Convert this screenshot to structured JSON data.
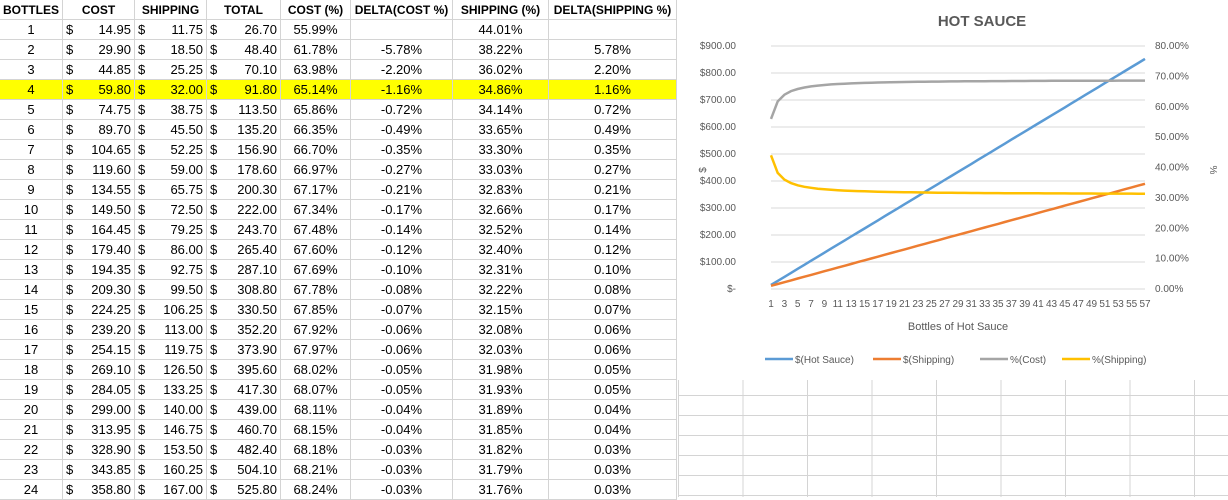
{
  "sheet": {
    "headers": [
      "BOTTLES",
      "COST",
      "SHIPPING",
      "TOTAL",
      "COST (%)",
      "DELTA(COST %)",
      "SHIPPING (%)",
      "DELTA(SHIPPING %)"
    ],
    "currency_symbol": "$",
    "highlight_row": 4,
    "highlight_color": "#ffff00",
    "rows": [
      {
        "bottles": "1",
        "cost": "14.95",
        "shipping": "11.75",
        "total": "26.70",
        "cost_pct": "55.99%",
        "delta_cost": "",
        "ship_pct": "44.01%",
        "delta_ship": ""
      },
      {
        "bottles": "2",
        "cost": "29.90",
        "shipping": "18.50",
        "total": "48.40",
        "cost_pct": "61.78%",
        "delta_cost": "-5.78%",
        "ship_pct": "38.22%",
        "delta_ship": "5.78%"
      },
      {
        "bottles": "3",
        "cost": "44.85",
        "shipping": "25.25",
        "total": "70.10",
        "cost_pct": "63.98%",
        "delta_cost": "-2.20%",
        "ship_pct": "36.02%",
        "delta_ship": "2.20%"
      },
      {
        "bottles": "4",
        "cost": "59.80",
        "shipping": "32.00",
        "total": "91.80",
        "cost_pct": "65.14%",
        "delta_cost": "-1.16%",
        "ship_pct": "34.86%",
        "delta_ship": "1.16%"
      },
      {
        "bottles": "5",
        "cost": "74.75",
        "shipping": "38.75",
        "total": "113.50",
        "cost_pct": "65.86%",
        "delta_cost": "-0.72%",
        "ship_pct": "34.14%",
        "delta_ship": "0.72%"
      },
      {
        "bottles": "6",
        "cost": "89.70",
        "shipping": "45.50",
        "total": "135.20",
        "cost_pct": "66.35%",
        "delta_cost": "-0.49%",
        "ship_pct": "33.65%",
        "delta_ship": "0.49%"
      },
      {
        "bottles": "7",
        "cost": "104.65",
        "shipping": "52.25",
        "total": "156.90",
        "cost_pct": "66.70%",
        "delta_cost": "-0.35%",
        "ship_pct": "33.30%",
        "delta_ship": "0.35%"
      },
      {
        "bottles": "8",
        "cost": "119.60",
        "shipping": "59.00",
        "total": "178.60",
        "cost_pct": "66.97%",
        "delta_cost": "-0.27%",
        "ship_pct": "33.03%",
        "delta_ship": "0.27%"
      },
      {
        "bottles": "9",
        "cost": "134.55",
        "shipping": "65.75",
        "total": "200.30",
        "cost_pct": "67.17%",
        "delta_cost": "-0.21%",
        "ship_pct": "32.83%",
        "delta_ship": "0.21%"
      },
      {
        "bottles": "10",
        "cost": "149.50",
        "shipping": "72.50",
        "total": "222.00",
        "cost_pct": "67.34%",
        "delta_cost": "-0.17%",
        "ship_pct": "32.66%",
        "delta_ship": "0.17%"
      },
      {
        "bottles": "11",
        "cost": "164.45",
        "shipping": "79.25",
        "total": "243.70",
        "cost_pct": "67.48%",
        "delta_cost": "-0.14%",
        "ship_pct": "32.52%",
        "delta_ship": "0.14%"
      },
      {
        "bottles": "12",
        "cost": "179.40",
        "shipping": "86.00",
        "total": "265.40",
        "cost_pct": "67.60%",
        "delta_cost": "-0.12%",
        "ship_pct": "32.40%",
        "delta_ship": "0.12%"
      },
      {
        "bottles": "13",
        "cost": "194.35",
        "shipping": "92.75",
        "total": "287.10",
        "cost_pct": "67.69%",
        "delta_cost": "-0.10%",
        "ship_pct": "32.31%",
        "delta_ship": "0.10%"
      },
      {
        "bottles": "14",
        "cost": "209.30",
        "shipping": "99.50",
        "total": "308.80",
        "cost_pct": "67.78%",
        "delta_cost": "-0.08%",
        "ship_pct": "32.22%",
        "delta_ship": "0.08%"
      },
      {
        "bottles": "15",
        "cost": "224.25",
        "shipping": "106.25",
        "total": "330.50",
        "cost_pct": "67.85%",
        "delta_cost": "-0.07%",
        "ship_pct": "32.15%",
        "delta_ship": "0.07%"
      },
      {
        "bottles": "16",
        "cost": "239.20",
        "shipping": "113.00",
        "total": "352.20",
        "cost_pct": "67.92%",
        "delta_cost": "-0.06%",
        "ship_pct": "32.08%",
        "delta_ship": "0.06%"
      },
      {
        "bottles": "17",
        "cost": "254.15",
        "shipping": "119.75",
        "total": "373.90",
        "cost_pct": "67.97%",
        "delta_cost": "-0.06%",
        "ship_pct": "32.03%",
        "delta_ship": "0.06%"
      },
      {
        "bottles": "18",
        "cost": "269.10",
        "shipping": "126.50",
        "total": "395.60",
        "cost_pct": "68.02%",
        "delta_cost": "-0.05%",
        "ship_pct": "31.98%",
        "delta_ship": "0.05%"
      },
      {
        "bottles": "19",
        "cost": "284.05",
        "shipping": "133.25",
        "total": "417.30",
        "cost_pct": "68.07%",
        "delta_cost": "-0.05%",
        "ship_pct": "31.93%",
        "delta_ship": "0.05%"
      },
      {
        "bottles": "20",
        "cost": "299.00",
        "shipping": "140.00",
        "total": "439.00",
        "cost_pct": "68.11%",
        "delta_cost": "-0.04%",
        "ship_pct": "31.89%",
        "delta_ship": "0.04%"
      },
      {
        "bottles": "21",
        "cost": "313.95",
        "shipping": "146.75",
        "total": "460.70",
        "cost_pct": "68.15%",
        "delta_cost": "-0.04%",
        "ship_pct": "31.85%",
        "delta_ship": "0.04%"
      },
      {
        "bottles": "22",
        "cost": "328.90",
        "shipping": "153.50",
        "total": "482.40",
        "cost_pct": "68.18%",
        "delta_cost": "-0.03%",
        "ship_pct": "31.82%",
        "delta_ship": "0.03%"
      },
      {
        "bottles": "23",
        "cost": "343.85",
        "shipping": "160.25",
        "total": "504.10",
        "cost_pct": "68.21%",
        "delta_cost": "-0.03%",
        "ship_pct": "31.79%",
        "delta_ship": "0.03%"
      },
      {
        "bottles": "24",
        "cost": "358.80",
        "shipping": "167.00",
        "total": "525.80",
        "cost_pct": "68.24%",
        "delta_cost": "-0.03%",
        "ship_pct": "31.76%",
        "delta_ship": "0.03%"
      }
    ]
  },
  "chart_data": {
    "type": "line",
    "title": "HOT SAUCE",
    "xlabel": "Bottles of Hot Sauce",
    "ylabel": "$",
    "y2label": "%",
    "x_range": [
      1,
      57
    ],
    "x_tick_labels": [
      "1",
      "3",
      "5",
      "7",
      "9",
      "11",
      "13",
      "15",
      "17",
      "19",
      "21",
      "23",
      "25",
      "27",
      "29",
      "31",
      "33",
      "35",
      "37",
      "39",
      "41",
      "43",
      "45",
      "47",
      "49",
      "51",
      "53",
      "55",
      "57"
    ],
    "ylim": [
      0,
      900
    ],
    "y_ticks": [
      0,
      100,
      200,
      300,
      400,
      500,
      600,
      700,
      800,
      900
    ],
    "y_tick_labels": [
      "$-",
      "$100.00",
      "$200.00",
      "$300.00",
      "$400.00",
      "$500.00",
      "$600.00",
      "$700.00",
      "$800.00",
      "$900.00"
    ],
    "y2lim": [
      0,
      80
    ],
    "y2_ticks": [
      0,
      10,
      20,
      30,
      40,
      50,
      60,
      70,
      80
    ],
    "y2_tick_labels": [
      "0.00%",
      "10.00%",
      "20.00%",
      "30.00%",
      "40.00%",
      "50.00%",
      "60.00%",
      "70.00%",
      "80.00%"
    ],
    "gridlines": true,
    "legend_position": "bottom",
    "series": [
      {
        "name": "$(Hot Sauce)",
        "axis": "left",
        "color": "#5b9bd5",
        "base": 0,
        "slope": 14.95
      },
      {
        "name": "$(Shipping)",
        "axis": "left",
        "color": "#ed7d31",
        "base": 5.0,
        "slope": 6.75
      },
      {
        "name": "%(Cost)",
        "axis": "right",
        "color": "#a5a5a5",
        "cost_per_bottle": 14.95,
        "ship_base": 5.0,
        "ship_per_bottle": 6.75
      },
      {
        "name": "%(Shipping)",
        "axis": "right",
        "color": "#ffc000",
        "cost_per_bottle": 14.95,
        "ship_base": 5.0,
        "ship_per_bottle": 6.75
      }
    ]
  }
}
